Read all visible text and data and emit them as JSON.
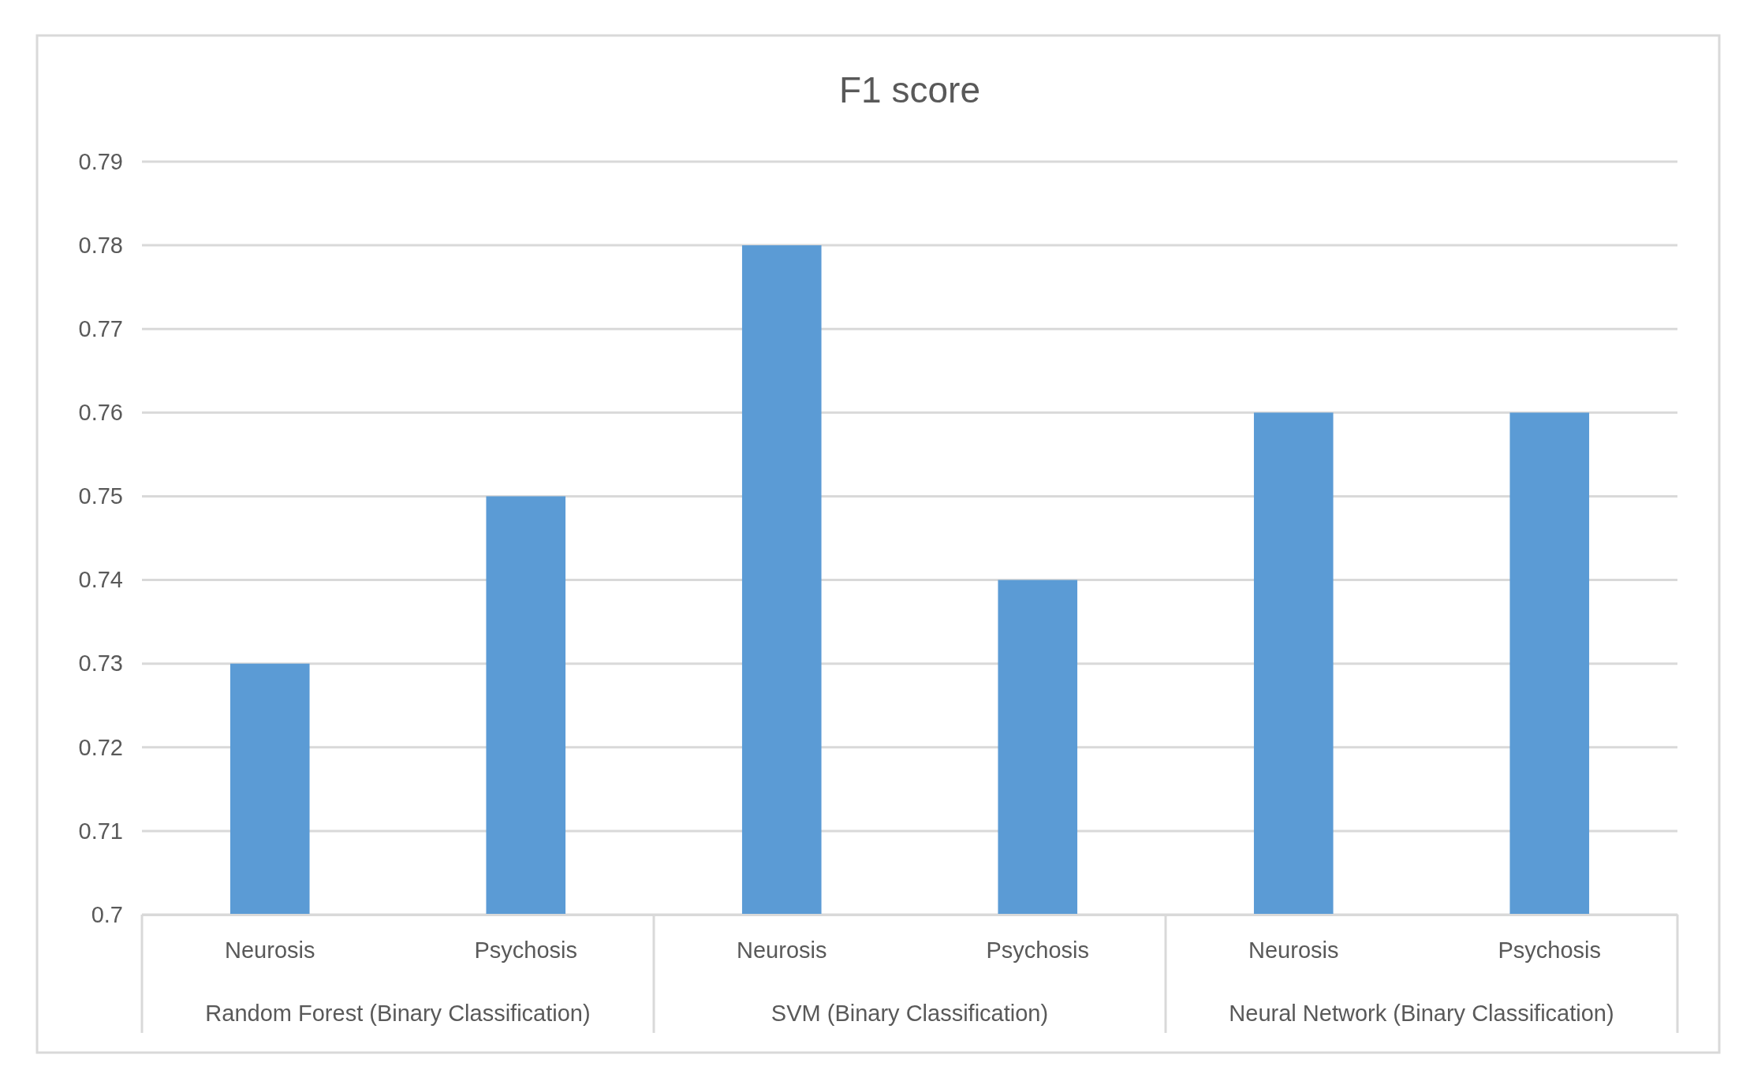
{
  "chart_data": {
    "type": "bar",
    "title": "F1 score",
    "categories": [
      "Neurosis",
      "Psychosis",
      "Neurosis",
      "Psychosis",
      "Neurosis",
      "Psychosis"
    ],
    "values": [
      0.73,
      0.75,
      0.78,
      0.74,
      0.76,
      0.76
    ],
    "color": "#5b9bd5",
    "ylim": [
      0.7,
      0.79
    ],
    "yticks": [
      {
        "value": 0.7,
        "label": "0.7"
      },
      0.71,
      0.72,
      0.73,
      0.74,
      0.75,
      0.76,
      0.77,
      0.78,
      0.79
    ],
    "grid": "y",
    "annotations": [
      "Random Forest (Binary Classification)",
      "SVM (Binary Classification)",
      "Neural Network (Binary Classification)"
    ]
  }
}
